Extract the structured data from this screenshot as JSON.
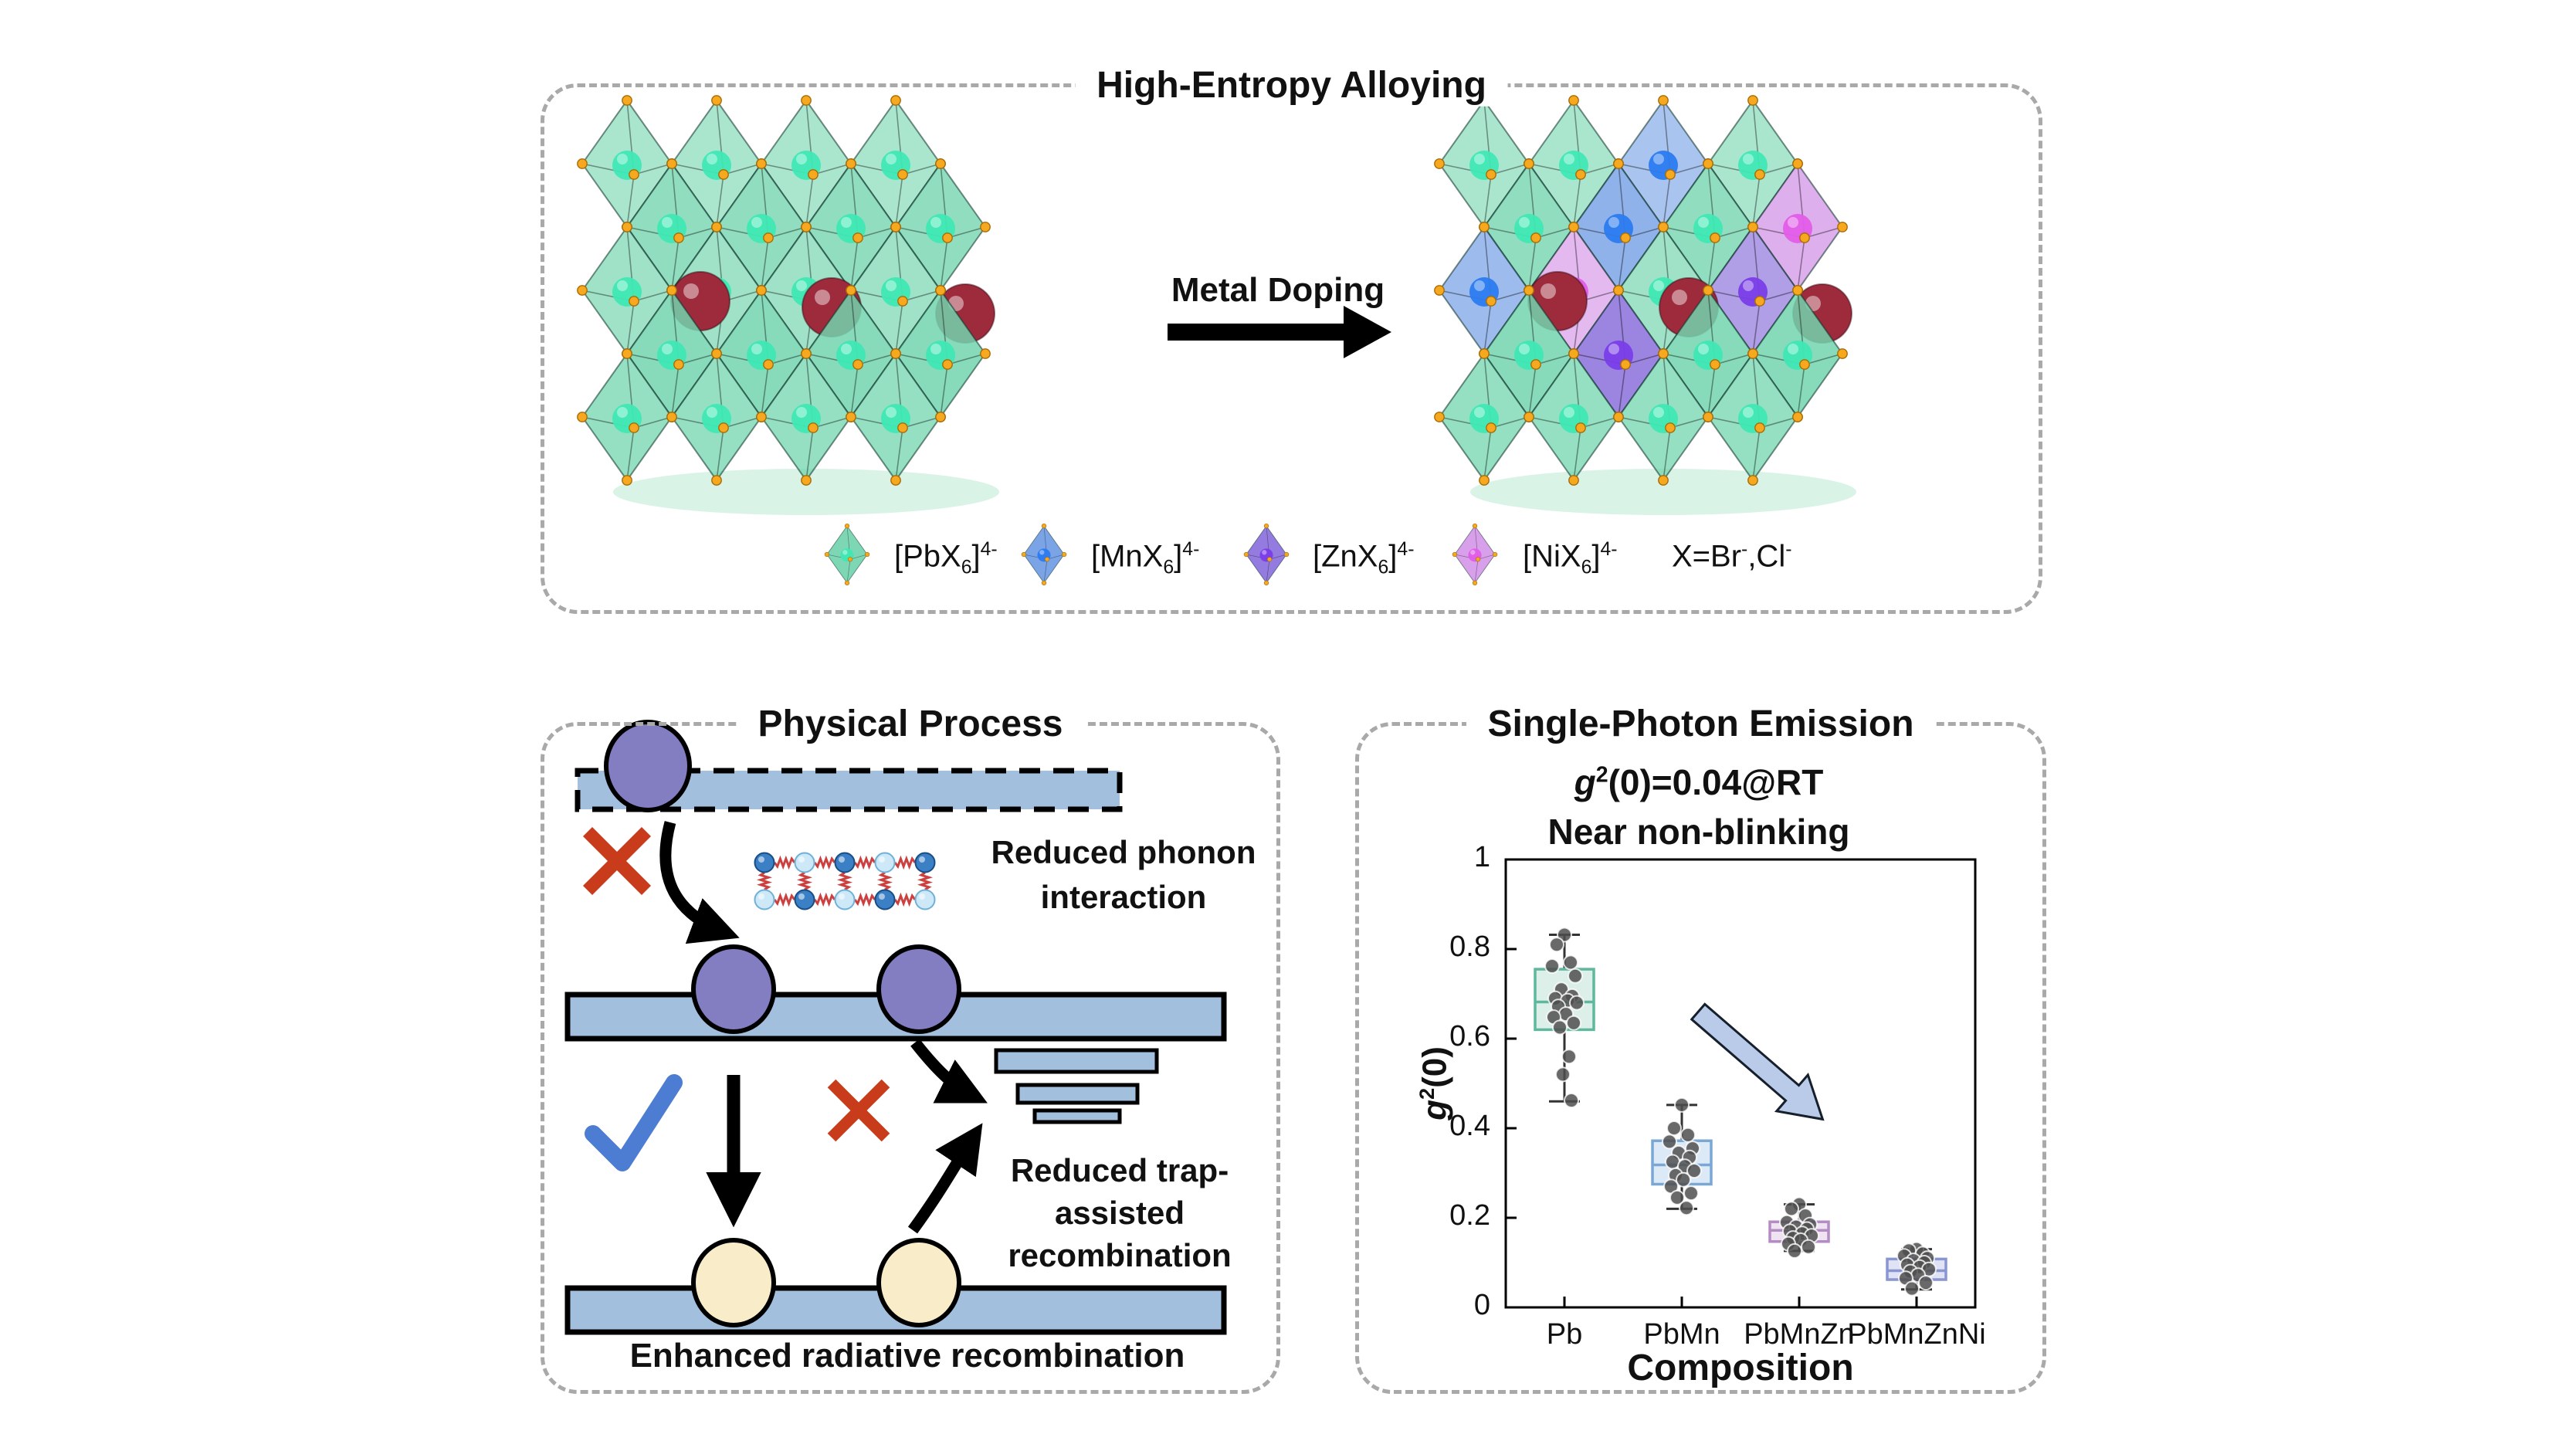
{
  "top_panel": {
    "title": "High-Entropy Alloying",
    "arrow_label": "Metal Doping",
    "legend": {
      "items": [
        {
          "name": "PbX6",
          "main": "[PbX",
          "sub": "6",
          "close": "]",
          "sup": "4-",
          "fill": "#72d4ae",
          "inner": "#3fe8b4"
        },
        {
          "name": "MnX6",
          "main": "[MnX",
          "sub": "6",
          "close": "]",
          "sup": "4-",
          "fill": "#6f9ce4",
          "inner": "#2b7bf0"
        },
        {
          "name": "ZnX6",
          "main": "[ZnX",
          "sub": "6",
          "close": "]",
          "sup": "4-",
          "fill": "#8a70dc",
          "inner": "#7a3de8"
        },
        {
          "name": "NiX6",
          "main": "[NiX",
          "sub": "6",
          "close": "]",
          "sup": "4-",
          "fill": "#d598e8",
          "inner": "#e25de8"
        }
      ],
      "note": {
        "a": "X=Br",
        "asup": "-",
        "b": ",Cl",
        "bsup": "-"
      }
    }
  },
  "physical_panel": {
    "title": "Physical Process",
    "phonon_line1": "Reduced phonon",
    "phonon_line2": "interaction",
    "trap_line1": "Reduced trap-",
    "trap_line2": "assisted",
    "trap_line3": "recombination",
    "bottom_caption": "Enhanced radiative recombination"
  },
  "emission_panel": {
    "title": "Single-Photon Emission",
    "stat": {
      "g": "g",
      "sup": "2",
      "rest": "(0)=0.04@RT"
    },
    "subtitle": "Near non-blinking"
  },
  "chart_data": {
    "type": "box",
    "xlabel": "Composition",
    "ylabel_parts": {
      "g": "g",
      "sup": "2",
      "rest": "(0)"
    },
    "categories": [
      "Pb",
      "PbMn",
      "PbMnZn",
      "PbMnZnNi"
    ],
    "ylim": [
      0,
      1
    ],
    "yticks": [
      0,
      0.2,
      0.4,
      0.6,
      0.8,
      1
    ],
    "grid": false,
    "boxes": [
      {
        "category": "Pb",
        "fill": "#dcefe8",
        "border": "#5fb89e",
        "whisker_low": 0.46,
        "q1": 0.62,
        "median": 0.682,
        "q3": 0.755,
        "whisker_high": 0.832,
        "points": [
          0.832,
          0.81,
          0.77,
          0.762,
          0.74,
          0.71,
          0.695,
          0.69,
          0.685,
          0.68,
          0.672,
          0.655,
          0.648,
          0.635,
          0.625,
          0.56,
          0.52,
          0.462
        ]
      },
      {
        "category": "PbMn",
        "fill": "#dce9f7",
        "border": "#7aa7d4",
        "whisker_low": 0.22,
        "q1": 0.275,
        "median": 0.318,
        "q3": 0.372,
        "whisker_high": 0.452,
        "points": [
          0.452,
          0.4,
          0.385,
          0.37,
          0.355,
          0.345,
          0.335,
          0.325,
          0.315,
          0.305,
          0.295,
          0.285,
          0.27,
          0.255,
          0.245,
          0.222
        ]
      },
      {
        "category": "PbMnZn",
        "fill": "#efe3f2",
        "border": "#b48cc4",
        "whisker_low": 0.126,
        "q1": 0.147,
        "median": 0.172,
        "q3": 0.191,
        "whisker_high": 0.23,
        "points": [
          0.23,
          0.22,
          0.205,
          0.19,
          0.185,
          0.18,
          0.175,
          0.17,
          0.165,
          0.16,
          0.155,
          0.15,
          0.142,
          0.135,
          0.126
        ]
      },
      {
        "category": "PbMnZnNi",
        "fill": "#dfe3f5",
        "border": "#8a96d0",
        "whisker_low": 0.04,
        "q1": 0.062,
        "median": 0.082,
        "q3": 0.108,
        "whisker_high": 0.13,
        "points": [
          0.13,
          0.127,
          0.12,
          0.115,
          0.11,
          0.105,
          0.1,
          0.095,
          0.09,
          0.085,
          0.08,
          0.072,
          0.065,
          0.055,
          0.042
        ]
      }
    ],
    "annotation_arrow": {
      "from_frac": [
        0.41,
        0.66
      ],
      "to_frac": [
        0.675,
        0.42
      ],
      "fill": "#b9cbe8"
    }
  },
  "colors": {
    "panel_border": "#a9a9a9",
    "band": "#a2c0de",
    "band_edge": "#000000",
    "exciton": "#837dc1",
    "ground_state": "#f9edc9",
    "cross": "#c83c1c",
    "check": "#4d7dd2",
    "spring": "#cc4040",
    "phonon_dark": "#3b7fc4",
    "phonon_light": "#cde9f8",
    "vertex_dot": "#f6a81e",
    "a_site_sphere": "#9e2b3c"
  }
}
